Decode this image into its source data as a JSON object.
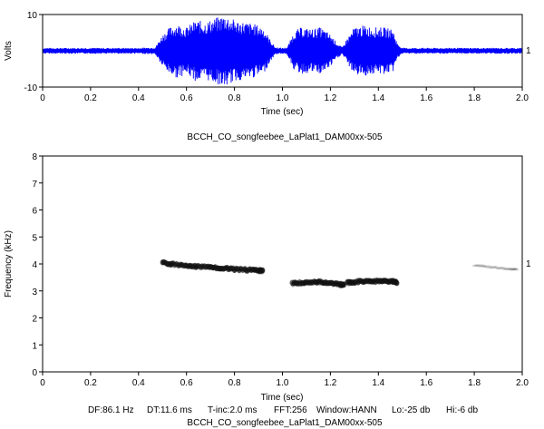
{
  "chart_data": [
    {
      "type": "line",
      "ylabel": "Volts",
      "xlabel": "Time (sec)",
      "xlim": [
        0,
        2
      ],
      "ylim": [
        -10,
        10
      ],
      "x_ticks": [
        "0",
        "0.2",
        "0.4",
        "0.6",
        "0.8",
        "1.0",
        "1.2",
        "1.4",
        "1.6",
        "1.8",
        "2.0"
      ],
      "y_tick_labels": [
        "10",
        "-10"
      ],
      "channel_label": "1",
      "title": "BCCH_CO_songfeebee_LaPlat1_DAM00xx-505",
      "color": "#0000ff",
      "envelope": {
        "x": [
          0.0,
          0.1,
          0.2,
          0.3,
          0.4,
          0.47,
          0.5,
          0.53,
          0.56,
          0.6,
          0.64,
          0.68,
          0.72,
          0.76,
          0.8,
          0.84,
          0.88,
          0.92,
          0.95,
          0.97,
          1.0,
          1.02,
          1.05,
          1.08,
          1.12,
          1.16,
          1.2,
          1.23,
          1.25,
          1.27,
          1.3,
          1.34,
          1.38,
          1.42,
          1.46,
          1.48,
          1.5,
          1.6,
          1.7,
          1.8,
          1.9,
          2.0
        ],
        "amplitude": [
          0.8,
          0.8,
          0.8,
          0.8,
          0.8,
          1.0,
          4.5,
          6.5,
          7.5,
          6.5,
          8.5,
          8.0,
          9.0,
          10.0,
          8.5,
          8.0,
          7.5,
          6.5,
          3.0,
          1.0,
          0.8,
          1.0,
          5.5,
          6.5,
          6.0,
          6.5,
          4.5,
          2.0,
          1.0,
          3.5,
          6.5,
          7.0,
          6.5,
          6.5,
          6.0,
          2.0,
          0.8,
          0.8,
          0.8,
          0.8,
          0.8,
          0.8
        ]
      }
    },
    {
      "type": "heatmap",
      "ylabel": "Frequency (kHz)",
      "xlabel": "Time (sec)",
      "xlim": [
        0,
        2
      ],
      "ylim": [
        0,
        8
      ],
      "x_ticks": [
        "0",
        "0.2",
        "0.4",
        "0.6",
        "0.8",
        "1.0",
        "1.2",
        "1.4",
        "1.6",
        "1.8",
        "2.0"
      ],
      "y_ticks": [
        "0",
        "1",
        "2",
        "3",
        "4",
        "5",
        "6",
        "7",
        "8"
      ],
      "channel_label": "1",
      "color": "#111111",
      "traces": [
        {
          "t": [
            0.5,
            0.55,
            0.6,
            0.65,
            0.7,
            0.75,
            0.8,
            0.85,
            0.9,
            0.92
          ],
          "f": [
            4.05,
            3.98,
            3.93,
            3.9,
            3.87,
            3.84,
            3.8,
            3.78,
            3.76,
            3.75
          ],
          "strength": 0.85
        },
        {
          "t": [
            1.04,
            1.08,
            1.12,
            1.16,
            1.2,
            1.24,
            1.26
          ],
          "f": [
            3.28,
            3.3,
            3.32,
            3.33,
            3.3,
            3.24,
            3.22
          ],
          "strength": 0.8
        },
        {
          "t": [
            1.27,
            1.3,
            1.34,
            1.38,
            1.42,
            1.46,
            1.48
          ],
          "f": [
            3.3,
            3.33,
            3.36,
            3.36,
            3.36,
            3.35,
            3.32
          ],
          "strength": 0.8
        },
        {
          "t": [
            1.8,
            1.85,
            1.9,
            1.95,
            1.98
          ],
          "f": [
            3.95,
            3.9,
            3.85,
            3.8,
            3.78
          ],
          "strength": 0.15
        }
      ]
    }
  ],
  "params_line": {
    "df": "DF:86.1 Hz",
    "dt": "DT:11.6 ms",
    "tinc": "T-inc:2.0 ms",
    "fft": "FFT:256",
    "window": "Window:HANN",
    "lo": "Lo:-25 db",
    "hi": "Hi:-6 db"
  },
  "bottom_title": "BCCH_CO_songfeebee_LaPlat1_DAM00xx-505"
}
